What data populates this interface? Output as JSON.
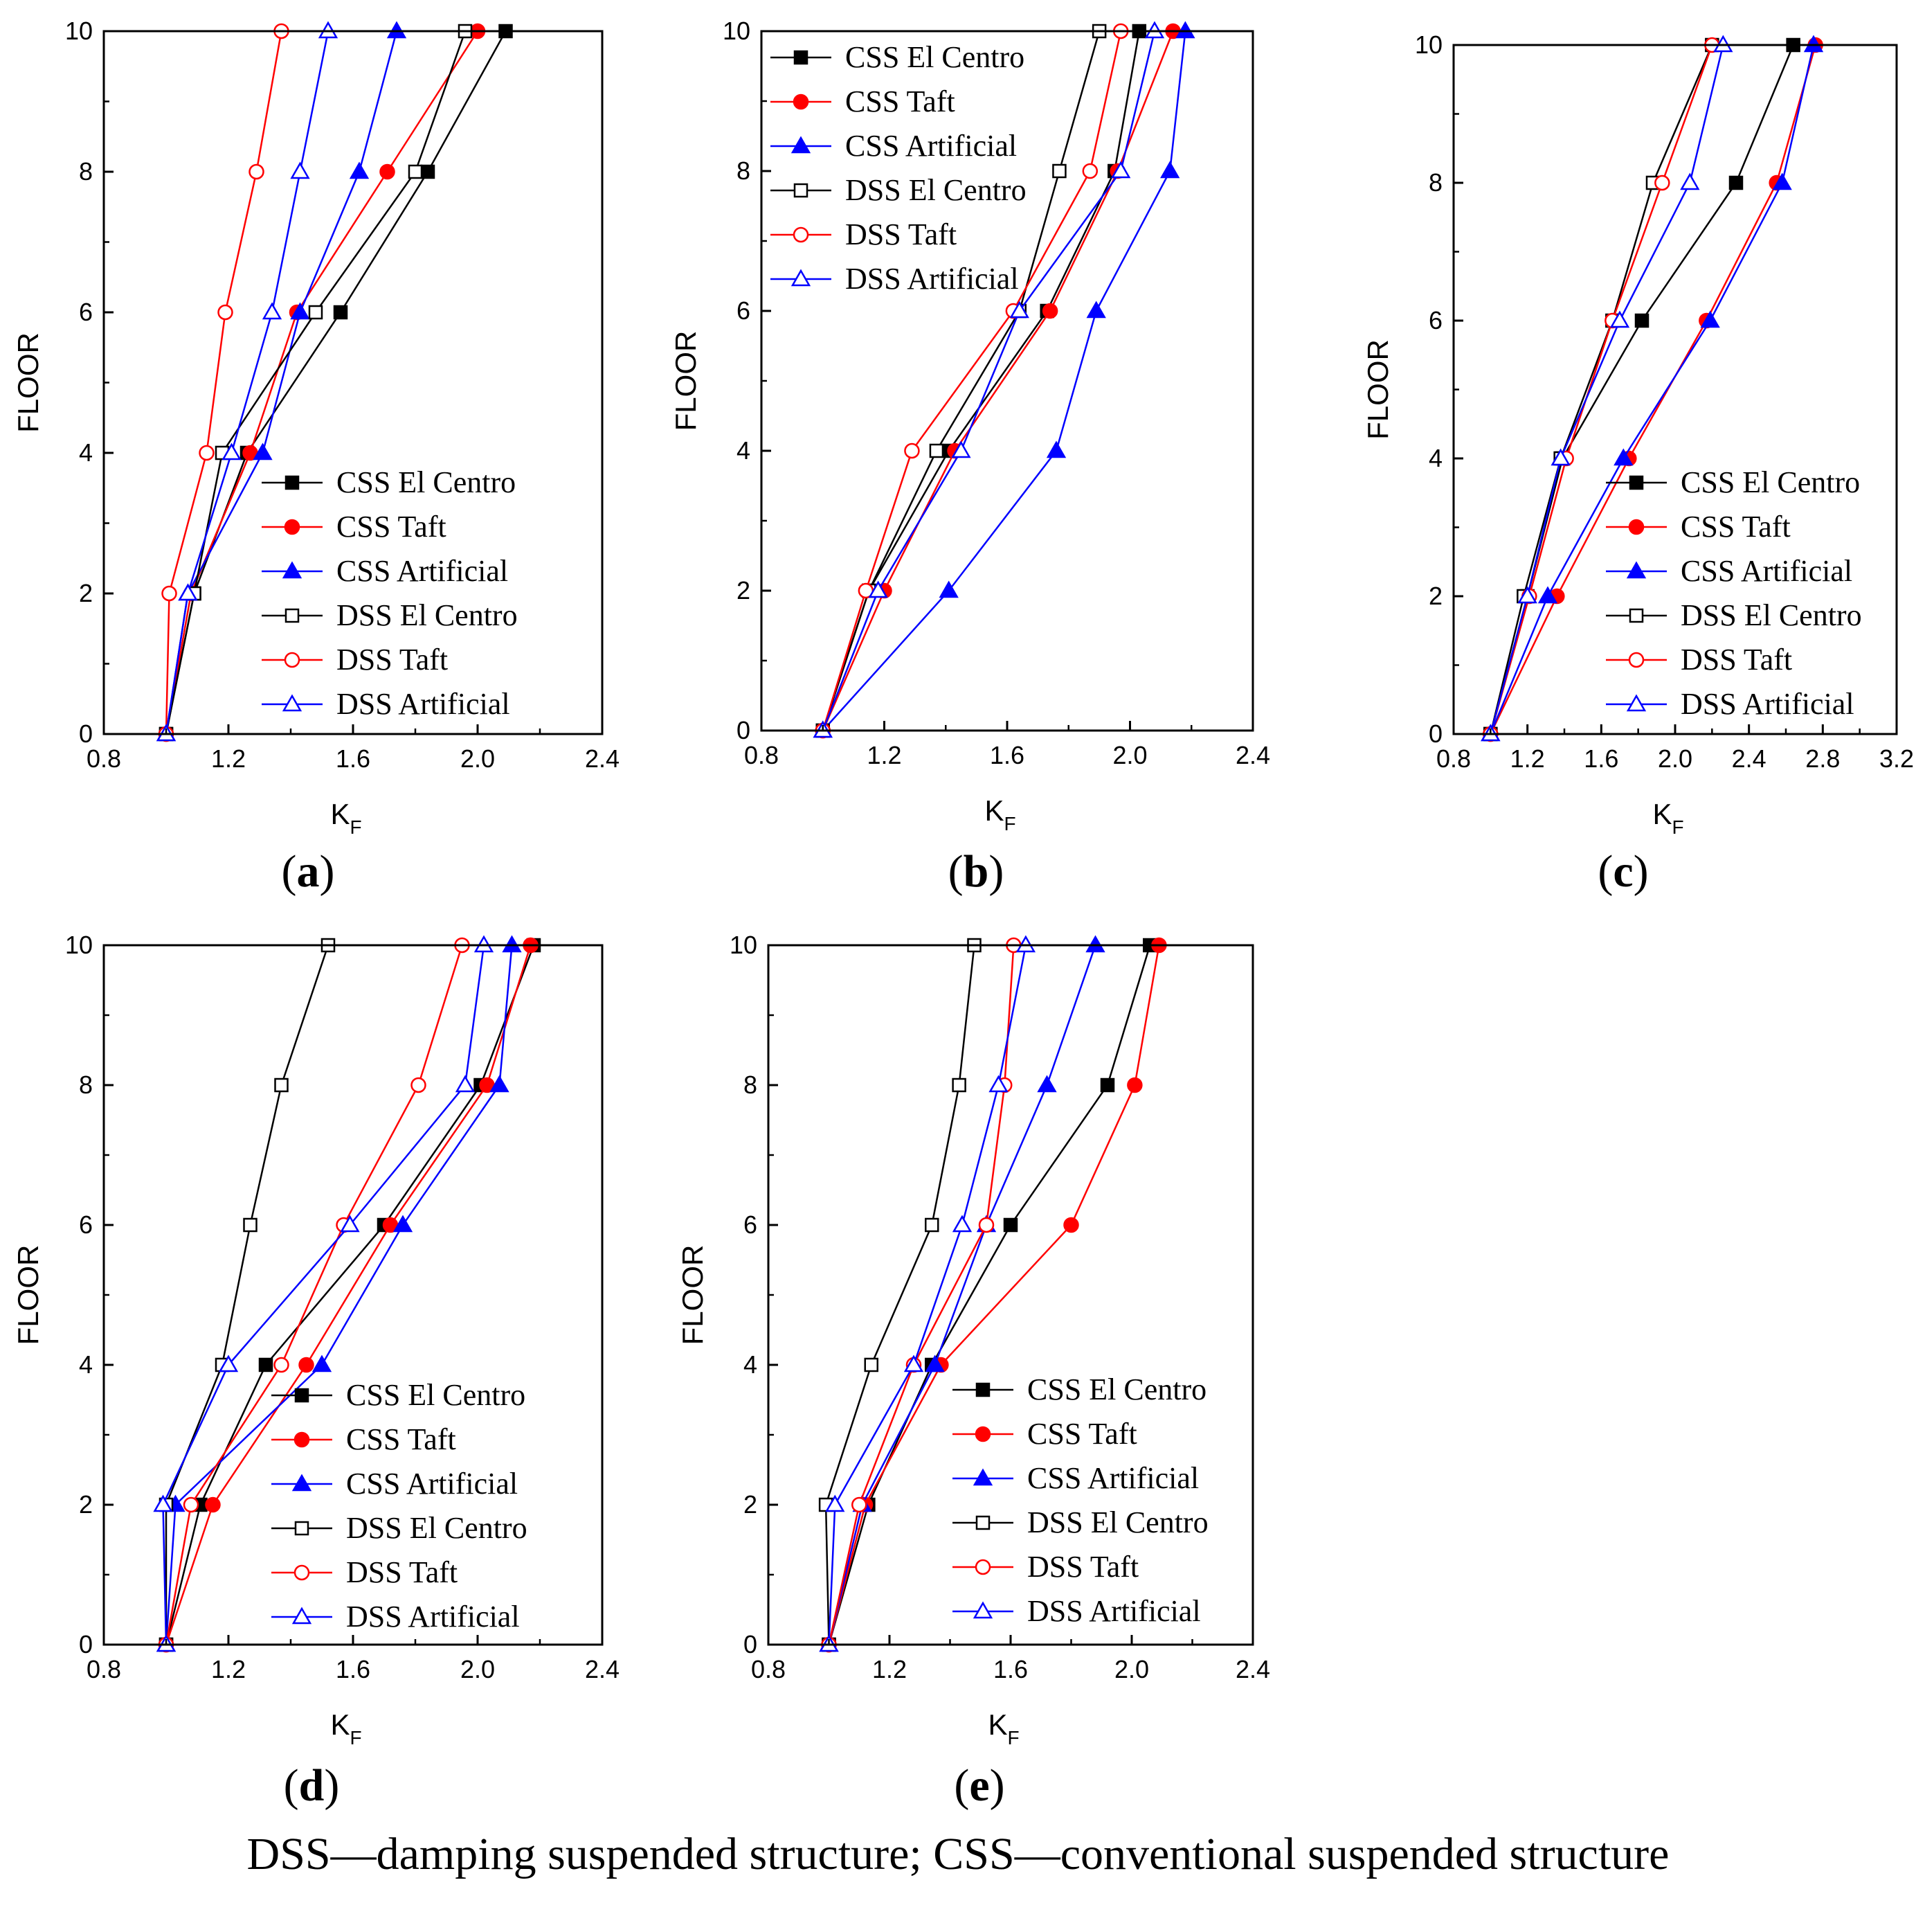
{
  "caption": "DSS—damping suspended structure; CSS—conventional suspended structure",
  "series_styles": {
    "CSS El Centro": {
      "color": "#000000",
      "marker": "square",
      "filled": true
    },
    "CSS Taft": {
      "color": "#ff0000",
      "marker": "circle",
      "filled": true
    },
    "CSS Artificial": {
      "color": "#0000ff",
      "marker": "triangle",
      "filled": true
    },
    "DSS El Centro": {
      "color": "#000000",
      "marker": "square",
      "filled": false
    },
    "DSS Taft": {
      "color": "#ff0000",
      "marker": "circle",
      "filled": false
    },
    "DSS Artificial": {
      "color": "#0000ff",
      "marker": "triangle",
      "filled": false
    }
  },
  "chart_data": [
    {
      "type": "line",
      "panel_label": "(a)",
      "xlabel": "K",
      "xlabel_sub": "F",
      "ylabel": "FLOOR",
      "xlim": [
        0.8,
        2.4
      ],
      "ylim": [
        0,
        10
      ],
      "xticks": [
        "0.8",
        "1.2",
        "1.6",
        "2.0",
        "2.4"
      ],
      "yticks": [
        "0",
        "2",
        "4",
        "6",
        "8",
        "10"
      ],
      "legend_position": "lower-right",
      "legend": [
        "CSS El Centro",
        "CSS Taft",
        "CSS Artificial",
        "DSS El Centro",
        "DSS Taft",
        "DSS Artificial"
      ],
      "y": [
        0,
        2,
        4,
        6,
        8,
        10
      ],
      "series": [
        {
          "name": "CSS El Centro",
          "x": [
            1.0,
            1.09,
            1.26,
            1.56,
            1.84,
            2.09
          ]
        },
        {
          "name": "CSS Taft",
          "x": [
            1.0,
            1.08,
            1.27,
            1.42,
            1.71,
            2.0
          ]
        },
        {
          "name": "CSS Artificial",
          "x": [
            1.0,
            1.07,
            1.31,
            1.43,
            1.62,
            1.74
          ]
        },
        {
          "name": "DSS El Centro",
          "x": [
            1.0,
            1.09,
            1.18,
            1.48,
            1.8,
            1.96
          ]
        },
        {
          "name": "DSS Taft",
          "x": [
            1.0,
            1.01,
            1.13,
            1.19,
            1.29,
            1.37
          ]
        },
        {
          "name": "DSS Artificial",
          "x": [
            1.0,
            1.07,
            1.21,
            1.34,
            1.43,
            1.52
          ]
        }
      ]
    },
    {
      "type": "line",
      "panel_label": "(b)",
      "xlabel": "K",
      "xlabel_sub": "F",
      "ylabel": "FLOOR",
      "xlim": [
        0.8,
        2.4
      ],
      "ylim": [
        0,
        10
      ],
      "xticks": [
        "0.8",
        "1.2",
        "1.6",
        "2.0",
        "2.4"
      ],
      "yticks": [
        "0",
        "2",
        "4",
        "6",
        "8",
        "10"
      ],
      "legend_position": "upper-left",
      "legend": [
        "CSS El Centro",
        "CSS Taft",
        "CSS Artificial",
        "DSS El Centro",
        "DSS Taft",
        "DSS Artificial"
      ],
      "y": [
        0,
        2,
        4,
        6,
        8,
        10
      ],
      "series": [
        {
          "name": "CSS El Centro",
          "x": [
            1.0,
            1.15,
            1.41,
            1.73,
            1.95,
            2.03
          ]
        },
        {
          "name": "CSS Taft",
          "x": [
            1.0,
            1.2,
            1.43,
            1.74,
            1.96,
            2.14
          ]
        },
        {
          "name": "CSS Artificial",
          "x": [
            1.0,
            1.41,
            1.76,
            1.89,
            2.13,
            2.18
          ]
        },
        {
          "name": "DSS El Centro",
          "x": [
            1.0,
            1.15,
            1.37,
            1.64,
            1.77,
            1.9
          ]
        },
        {
          "name": "DSS Taft",
          "x": [
            1.0,
            1.14,
            1.29,
            1.62,
            1.87,
            1.97
          ]
        },
        {
          "name": "DSS Artificial",
          "x": [
            1.0,
            1.18,
            1.45,
            1.64,
            1.97,
            2.08
          ]
        }
      ]
    },
    {
      "type": "line",
      "panel_label": "(c)",
      "xlabel": "K",
      "xlabel_sub": "F",
      "ylabel": "FLOOR",
      "xlim": [
        0.8,
        3.2
      ],
      "ylim": [
        0,
        10
      ],
      "xticks": [
        "0.8",
        "1.2",
        "1.6",
        "2.0",
        "2.4",
        "2.8",
        "3.2"
      ],
      "yticks": [
        "0",
        "2",
        "4",
        "6",
        "8",
        "10"
      ],
      "legend_position": "lower-right",
      "legend": [
        "CSS El Centro",
        "CSS Taft",
        "CSS Artificial",
        "DSS El Centro",
        "DSS Taft",
        "DSS Artificial"
      ],
      "y": [
        0,
        2,
        4,
        6,
        8,
        10
      ],
      "series": [
        {
          "name": "CSS El Centro",
          "x": [
            1.0,
            1.2,
            1.39,
            1.82,
            2.33,
            2.64
          ]
        },
        {
          "name": "CSS Taft",
          "x": [
            1.0,
            1.36,
            1.75,
            2.17,
            2.55,
            2.76
          ]
        },
        {
          "name": "CSS Artificial",
          "x": [
            1.0,
            1.31,
            1.72,
            2.19,
            2.58,
            2.75
          ]
        },
        {
          "name": "DSS El Centro",
          "x": [
            1.0,
            1.18,
            1.38,
            1.66,
            1.88,
            2.2
          ]
        },
        {
          "name": "DSS Taft",
          "x": [
            1.0,
            1.21,
            1.41,
            1.66,
            1.93,
            2.2
          ]
        },
        {
          "name": "DSS Artificial",
          "x": [
            1.0,
            1.2,
            1.38,
            1.7,
            2.08,
            2.26
          ]
        }
      ]
    },
    {
      "type": "line",
      "panel_label": "(d)",
      "xlabel": "K",
      "xlabel_sub": "F",
      "ylabel": "FLOOR",
      "xlim": [
        0.8,
        2.4
      ],
      "ylim": [
        0,
        10
      ],
      "xticks": [
        "0.8",
        "1.2",
        "1.6",
        "2.0",
        "2.4"
      ],
      "yticks": [
        "0",
        "2",
        "4",
        "6",
        "8",
        "10"
      ],
      "legend_position": "lower-right",
      "legend": [
        "CSS El Centro",
        "CSS Taft",
        "CSS Artificial",
        "DSS El Centro",
        "DSS Taft",
        "DSS Artificial"
      ],
      "y": [
        0,
        2,
        4,
        6,
        8,
        10
      ],
      "series": [
        {
          "name": "CSS El Centro",
          "x": [
            1.0,
            1.11,
            1.32,
            1.7,
            2.01,
            2.18
          ]
        },
        {
          "name": "CSS Taft",
          "x": [
            1.0,
            1.15,
            1.45,
            1.72,
            2.03,
            2.17
          ]
        },
        {
          "name": "CSS Artificial",
          "x": [
            1.0,
            1.03,
            1.5,
            1.76,
            2.07,
            2.11
          ]
        },
        {
          "name": "DSS El Centro",
          "x": [
            1.0,
            1.0,
            1.18,
            1.27,
            1.37,
            1.52
          ]
        },
        {
          "name": "DSS Taft",
          "x": [
            1.0,
            1.08,
            1.37,
            1.57,
            1.81,
            1.95
          ]
        },
        {
          "name": "DSS Artificial",
          "x": [
            1.0,
            0.99,
            1.2,
            1.59,
            1.96,
            2.02
          ]
        }
      ]
    },
    {
      "type": "line",
      "panel_label": "(e)",
      "xlabel": "K",
      "xlabel_sub": "F",
      "ylabel": "FLOOR",
      "xlim": [
        0.8,
        2.4
      ],
      "ylim": [
        0,
        10
      ],
      "xticks": [
        "0.8",
        "1.2",
        "1.6",
        "2.0",
        "2.4"
      ],
      "yticks": [
        "0",
        "2",
        "4",
        "6",
        "8",
        "10"
      ],
      "legend_position": "lower-right",
      "legend": [
        "CSS El Centro",
        "CSS Taft",
        "CSS Artificial",
        "DSS El Centro",
        "DSS Taft",
        "DSS Artificial"
      ],
      "y": [
        0,
        2,
        4,
        6,
        8,
        10
      ],
      "series": [
        {
          "name": "CSS El Centro",
          "x": [
            1.0,
            1.13,
            1.34,
            1.6,
            1.92,
            2.06
          ]
        },
        {
          "name": "CSS Taft",
          "x": [
            1.0,
            1.12,
            1.37,
            1.8,
            2.01,
            2.09
          ]
        },
        {
          "name": "CSS Artificial",
          "x": [
            1.0,
            1.11,
            1.35,
            1.52,
            1.72,
            1.88
          ]
        },
        {
          "name": "DSS El Centro",
          "x": [
            1.0,
            0.99,
            1.14,
            1.34,
            1.43,
            1.48
          ]
        },
        {
          "name": "DSS Taft",
          "x": [
            1.0,
            1.1,
            1.28,
            1.52,
            1.58,
            1.61
          ]
        },
        {
          "name": "DSS Artificial",
          "x": [
            1.0,
            1.02,
            1.28,
            1.44,
            1.56,
            1.65
          ]
        }
      ]
    }
  ]
}
